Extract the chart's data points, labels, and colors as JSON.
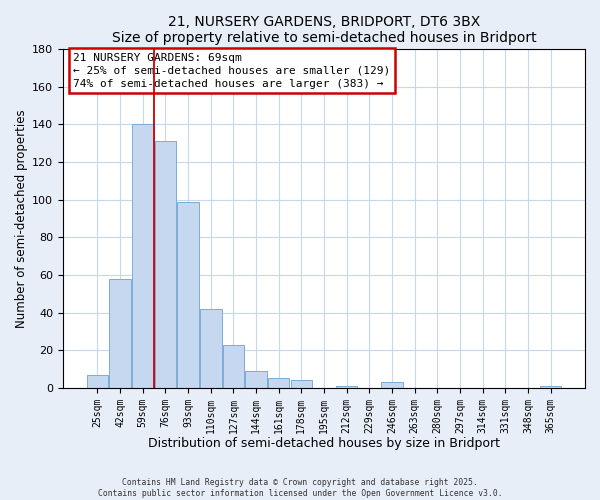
{
  "title": "21, NURSERY GARDENS, BRIDPORT, DT6 3BX",
  "subtitle": "Size of property relative to semi-detached houses in Bridport",
  "xlabel": "Distribution of semi-detached houses by size in Bridport",
  "ylabel": "Number of semi-detached properties",
  "bar_labels": [
    "25sqm",
    "42sqm",
    "59sqm",
    "76sqm",
    "93sqm",
    "110sqm",
    "127sqm",
    "144sqm",
    "161sqm",
    "178sqm",
    "195sqm",
    "212sqm",
    "229sqm",
    "246sqm",
    "263sqm",
    "280sqm",
    "297sqm",
    "314sqm",
    "331sqm",
    "348sqm",
    "365sqm"
  ],
  "bar_values": [
    7,
    58,
    140,
    131,
    99,
    42,
    23,
    9,
    5,
    4,
    0,
    1,
    0,
    3,
    0,
    0,
    0,
    0,
    0,
    0,
    1
  ],
  "bar_color": "#c5d8f0",
  "bar_edge_color": "#7aadd4",
  "ylim": [
    0,
    180
  ],
  "yticks": [
    0,
    20,
    40,
    60,
    80,
    100,
    120,
    140,
    160,
    180
  ],
  "property_line_x": 2.5,
  "property_line_color": "#cc0000",
  "annotation_title": "21 NURSERY GARDENS: 69sqm",
  "annotation_line1": "← 25% of semi-detached houses are smaller (129)",
  "annotation_line2": "74% of semi-detached houses are larger (383) →",
  "annotation_box_color": "#cc0000",
  "footer1": "Contains HM Land Registry data © Crown copyright and database right 2025.",
  "footer2": "Contains public sector information licensed under the Open Government Licence v3.0.",
  "background_color": "#e8eef8",
  "plot_bg_color": "#ffffff",
  "grid_color": "#c8d8ec"
}
